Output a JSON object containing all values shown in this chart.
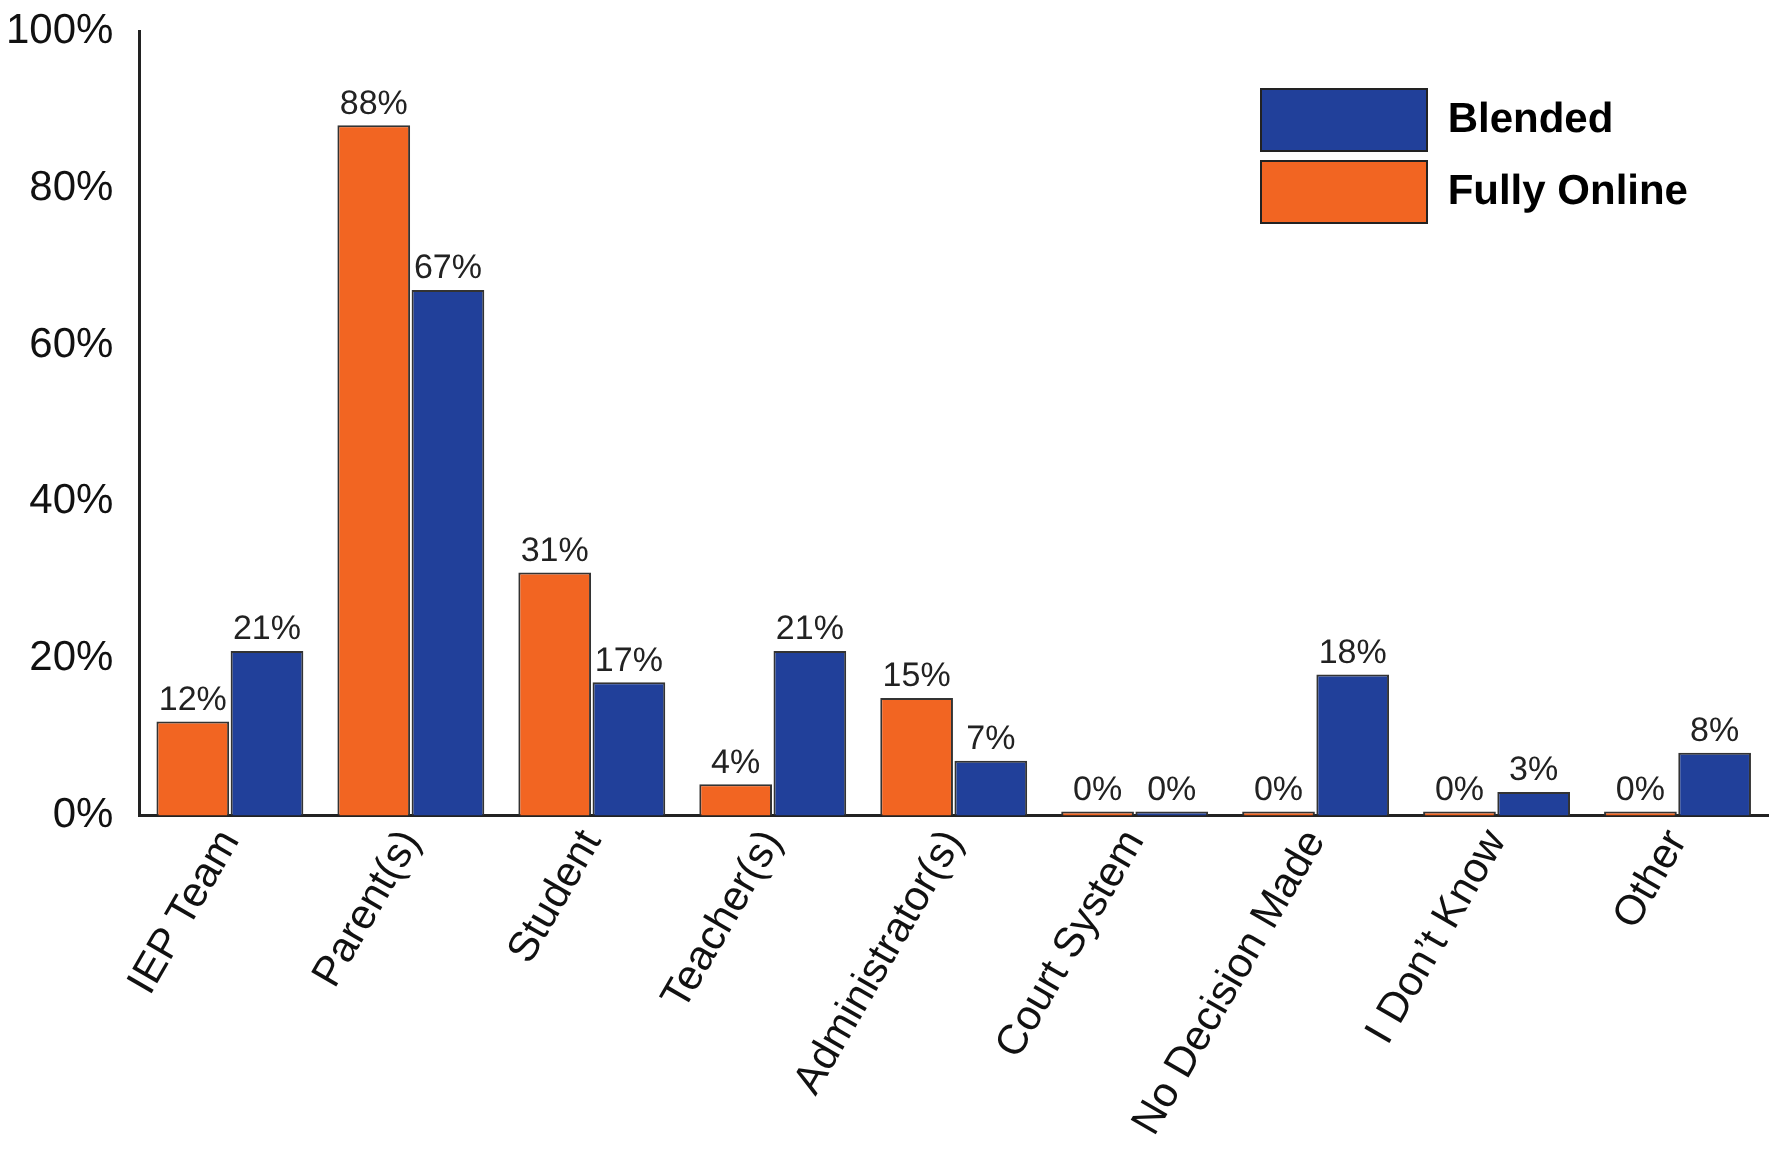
{
  "chart_data": {
    "type": "bar",
    "categories": [
      "IEP Team",
      "Parent(s)",
      "Student",
      "Teacher(s)",
      "Administrator(s)",
      "Court System",
      "No Decision Made",
      "I Don’t Know",
      "Other"
    ],
    "series": [
      {
        "name": "Fully Online",
        "color": "#f26522",
        "values": [
          12,
          88,
          31,
          4,
          15,
          0,
          0,
          0,
          0
        ],
        "value_labels": [
          "12%",
          "88%",
          "31%",
          "4%",
          "15%",
          "0%",
          "0%",
          "0%",
          "0%"
        ]
      },
      {
        "name": "Blended",
        "color": "#21409a",
        "values": [
          21,
          67,
          17,
          21,
          7,
          0,
          18,
          3,
          8
        ],
        "value_labels": [
          "21%",
          "67%",
          "17%",
          "21%",
          "7%",
          "0%",
          "18%",
          "3%",
          "8%"
        ]
      }
    ],
    "ylim": [
      0,
      100
    ],
    "yticks": [
      {
        "value": 0,
        "label": "0%"
      },
      {
        "value": 20,
        "label": "20%"
      },
      {
        "value": 40,
        "label": "40%"
      },
      {
        "value": 60,
        "label": "60%"
      },
      {
        "value": 80,
        "label": "80%"
      },
      {
        "value": 100,
        "label": "100%"
      }
    ],
    "grid": false,
    "legend": "top right"
  }
}
